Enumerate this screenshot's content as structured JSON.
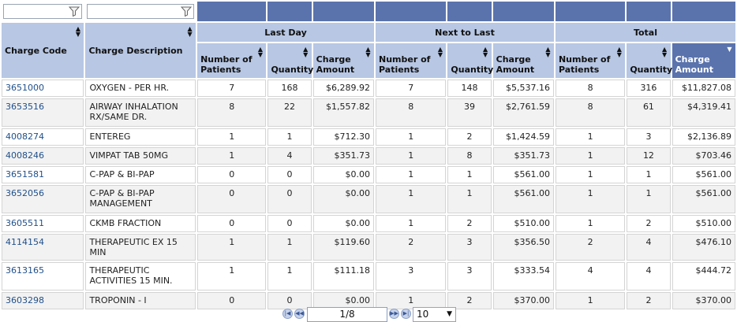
{
  "headers": {
    "charge_code": "Charge Code",
    "charge_description": "Charge Description",
    "groups": [
      "Last Day",
      "Next to Last",
      "Total"
    ],
    "sub": [
      "Number of Patients",
      "Quantity",
      "Charge Amount"
    ]
  },
  "rows": [
    {
      "code": "3651000",
      "desc": "OXYGEN - PER HR.",
      "ld_p": "7",
      "ld_q": "168",
      "ld_a": "$6,289.92",
      "nl_p": "7",
      "nl_q": "148",
      "nl_a": "$5,537.16",
      "t_p": "8",
      "t_q": "316",
      "t_a": "$11,827.08"
    },
    {
      "code": "3653516",
      "desc": "AIRWAY INHALATION RX/SAME DR.",
      "ld_p": "8",
      "ld_q": "22",
      "ld_a": "$1,557.82",
      "nl_p": "8",
      "nl_q": "39",
      "nl_a": "$2,761.59",
      "t_p": "8",
      "t_q": "61",
      "t_a": "$4,319.41"
    },
    {
      "code": "4008274",
      "desc": "ENTEREG",
      "ld_p": "1",
      "ld_q": "1",
      "ld_a": "$712.30",
      "nl_p": "1",
      "nl_q": "2",
      "nl_a": "$1,424.59",
      "t_p": "1",
      "t_q": "3",
      "t_a": "$2,136.89"
    },
    {
      "code": "4008246",
      "desc": "VIMPAT TAB 50MG",
      "ld_p": "1",
      "ld_q": "4",
      "ld_a": "$351.73",
      "nl_p": "1",
      "nl_q": "8",
      "nl_a": "$351.73",
      "t_p": "1",
      "t_q": "12",
      "t_a": "$703.46"
    },
    {
      "code": "3651581",
      "desc": "C-PAP & BI-PAP",
      "ld_p": "0",
      "ld_q": "0",
      "ld_a": "$0.00",
      "nl_p": "1",
      "nl_q": "1",
      "nl_a": "$561.00",
      "t_p": "1",
      "t_q": "1",
      "t_a": "$561.00"
    },
    {
      "code": "3652056",
      "desc": "C-PAP & BI-PAP MANAGEMENT",
      "ld_p": "0",
      "ld_q": "0",
      "ld_a": "$0.00",
      "nl_p": "1",
      "nl_q": "1",
      "nl_a": "$561.00",
      "t_p": "1",
      "t_q": "1",
      "t_a": "$561.00"
    },
    {
      "code": "3605511",
      "desc": "CKMB FRACTION",
      "ld_p": "0",
      "ld_q": "0",
      "ld_a": "$0.00",
      "nl_p": "1",
      "nl_q": "2",
      "nl_a": "$510.00",
      "t_p": "1",
      "t_q": "2",
      "t_a": "$510.00"
    },
    {
      "code": "4114154",
      "desc": "THERAPEUTIC EX 15 MIN",
      "ld_p": "1",
      "ld_q": "1",
      "ld_a": "$119.60",
      "nl_p": "2",
      "nl_q": "3",
      "nl_a": "$356.50",
      "t_p": "2",
      "t_q": "4",
      "t_a": "$476.10"
    },
    {
      "code": "3613165",
      "desc": "THERAPEUTIC ACTIVITIES 15 MIN.",
      "ld_p": "1",
      "ld_q": "1",
      "ld_a": "$111.18",
      "nl_p": "3",
      "nl_q": "3",
      "nl_a": "$333.54",
      "t_p": "4",
      "t_q": "4",
      "t_a": "$444.72"
    },
    {
      "code": "3603298",
      "desc": "TROPONIN - I",
      "ld_p": "0",
      "ld_q": "0",
      "ld_a": "$0.00",
      "nl_p": "1",
      "nl_q": "2",
      "nl_a": "$370.00",
      "t_p": "1",
      "t_q": "2",
      "t_a": "$370.00"
    }
  ],
  "pager": {
    "page_indicator": "1/8",
    "page_size": "10",
    "first_icon": "first-page-icon",
    "prev_icon": "prev-page-icon",
    "next_icon": "next-page-icon",
    "last_icon": "last-page-icon"
  },
  "colors": {
    "header_bg": "#b7c7e4",
    "sorted_header_bg": "#5a73ad",
    "link": "#1f4f8b"
  }
}
